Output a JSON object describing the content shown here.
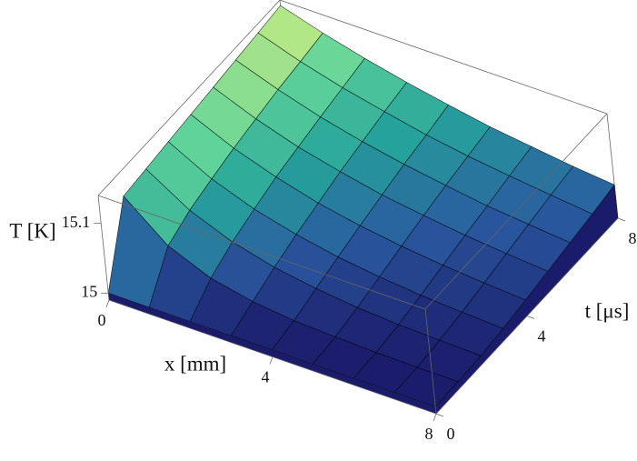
{
  "chart_data": {
    "type": "surface",
    "x_label": "x [mm]",
    "y_label": "t [μs]",
    "z_label": "T [K]",
    "x": [
      0,
      1,
      2,
      3,
      4,
      5,
      6,
      7,
      8
    ],
    "y": [
      0,
      1,
      2,
      3,
      4,
      5,
      6,
      7,
      8
    ],
    "z": [
      [
        15.0,
        15.0,
        15.0,
        15.0,
        15.0,
        15.0,
        15.0,
        15.0,
        15.0
      ],
      [
        15.104,
        15.053,
        15.027,
        15.014,
        15.007,
        15.004,
        15.002,
        15.001,
        15.001
      ],
      [
        15.108,
        15.069,
        15.044,
        15.028,
        15.018,
        15.011,
        15.007,
        15.005,
        15.003
      ],
      [
        15.112,
        15.079,
        15.056,
        15.04,
        15.028,
        15.02,
        15.014,
        15.01,
        15.007
      ],
      [
        15.116,
        15.088,
        15.067,
        15.05,
        15.038,
        15.029,
        15.022,
        15.017,
        15.013
      ],
      [
        15.12,
        15.095,
        15.075,
        15.06,
        15.047,
        15.038,
        15.03,
        15.024,
        15.019
      ],
      [
        15.124,
        15.102,
        15.083,
        15.068,
        15.056,
        15.046,
        15.037,
        15.031,
        15.025
      ],
      [
        15.128,
        15.107,
        15.09,
        15.076,
        15.063,
        15.053,
        15.045,
        15.038,
        15.031
      ],
      [
        15.132,
        15.113,
        15.097,
        15.083,
        15.071,
        15.06,
        15.052,
        15.044,
        15.038
      ]
    ],
    "xlim": [
      0,
      8
    ],
    "xticks": [
      0,
      4,
      8
    ],
    "ylim": [
      0,
      8
    ],
    "yticks": [
      0,
      4,
      8
    ],
    "zlim": [
      14.99,
      15.14
    ],
    "zticks": [
      15,
      15.1
    ],
    "colormap": [
      "#1b1b6b",
      "#2a5aa0",
      "#25a39b",
      "#5fd39a",
      "#e0f27c"
    ]
  }
}
